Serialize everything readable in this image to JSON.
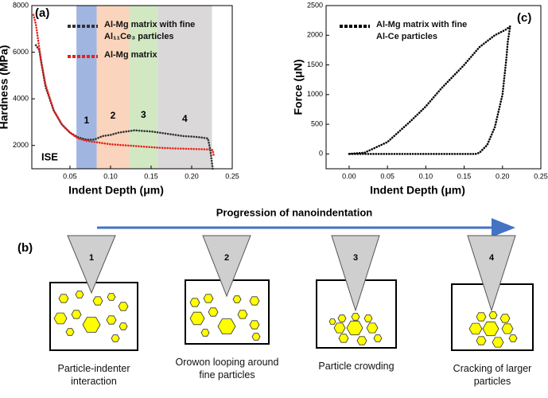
{
  "chart_data": [
    {
      "type": "line",
      "panel": "(a)",
      "annotation": "ISE",
      "x_label": "Indent Depth (μm)",
      "y_label": "Hardness (MPa)",
      "xlim": [
        0.003,
        0.25
      ],
      "ylim": [
        1000,
        8000
      ],
      "xticks": [
        0.05,
        {
          "value": 0.1,
          "label": "0.10"
        },
        0.15,
        {
          "value": 0.2,
          "label": "0.20"
        },
        0.25
      ],
      "yticks": [
        2000,
        4000,
        6000,
        8000
      ],
      "bands": [
        {
          "label": "1",
          "from": 0.058,
          "to": 0.083,
          "color": "#8fa9dc"
        },
        {
          "label": "2",
          "from": 0.083,
          "to": 0.123,
          "color": "#f9cdb0"
        },
        {
          "label": "3",
          "from": 0.123,
          "to": 0.158,
          "color": "#c9e4b8"
        },
        {
          "label": "4",
          "from": 0.158,
          "to": 0.225,
          "color": "#d3d1d1"
        }
      ],
      "series": [
        {
          "name": "Al-Mg matrix with fine Al₁₁Ce₃ particles",
          "color": "#333333",
          "x": [
            0.008,
            0.012,
            0.02,
            0.03,
            0.04,
            0.05,
            0.06,
            0.07,
            0.08,
            0.09,
            0.1,
            0.11,
            0.12,
            0.13,
            0.14,
            0.15,
            0.16,
            0.17,
            0.18,
            0.19,
            0.2,
            0.21,
            0.22,
            0.223,
            0.226
          ],
          "values": [
            6300,
            6100,
            4500,
            3500,
            2900,
            2550,
            2350,
            2250,
            2250,
            2400,
            2450,
            2550,
            2600,
            2650,
            2620,
            2600,
            2550,
            2500,
            2450,
            2400,
            2380,
            2350,
            2300,
            1800,
            1000
          ]
        },
        {
          "name": "Al-Mg matrix",
          "color": "#e8211e",
          "x": [
            0.005,
            0.008,
            0.015,
            0.02,
            0.03,
            0.04,
            0.05,
            0.06,
            0.07,
            0.08,
            0.1,
            0.12,
            0.14,
            0.16,
            0.18,
            0.2,
            0.22,
            0.226,
            0.227
          ],
          "values": [
            7600,
            7200,
            5500,
            4600,
            3500,
            2900,
            2550,
            2300,
            2200,
            2150,
            2050,
            2000,
            1950,
            1900,
            1870,
            1850,
            1830,
            1800,
            1600
          ]
        }
      ]
    },
    {
      "type": "line",
      "panel": "(c)",
      "x_label": "Indent Depth (μm)",
      "y_label": "Force (μN)",
      "xlim": [
        -0.03,
        0.25
      ],
      "ylim": [
        -250,
        2500
      ],
      "xticks": [
        {
          "value": 0,
          "label": "0.00"
        },
        0.05,
        {
          "value": 0.1,
          "label": "0.10"
        },
        0.15,
        {
          "value": 0.2,
          "label": "0.20"
        },
        0.25
      ],
      "yticks": [
        0,
        500,
        1000,
        1500,
        2000,
        2500
      ],
      "series": [
        {
          "name": "Al-Mg matrix with fine Al-Ce particles",
          "color": "#000000",
          "x": [
            0,
            0.02,
            0.05,
            0.08,
            0.1,
            0.12,
            0.15,
            0.17,
            0.19,
            0.205,
            0.21,
            0.207,
            0.205,
            0.2,
            0.19,
            0.18,
            0.17,
            0.165,
            0.12,
            0.08,
            0.04,
            0.0
          ],
          "values": [
            0,
            20,
            200,
            550,
            800,
            1100,
            1500,
            1800,
            2000,
            2100,
            2150,
            1900,
            1600,
            1000,
            450,
            150,
            20,
            0,
            0,
            0,
            0,
            0
          ]
        }
      ]
    }
  ],
  "diagram": {
    "label": "(b)",
    "arrow_label": "Progression of nanoindentation",
    "steps": [
      {
        "number": "1",
        "caption": "Particle-indenter interaction"
      },
      {
        "number": "2",
        "caption": "Orowon looping around fine particles"
      },
      {
        "number": "3",
        "caption": "Particle crowding"
      },
      {
        "number": "4",
        "caption": "Cracking of larger particles"
      }
    ]
  }
}
